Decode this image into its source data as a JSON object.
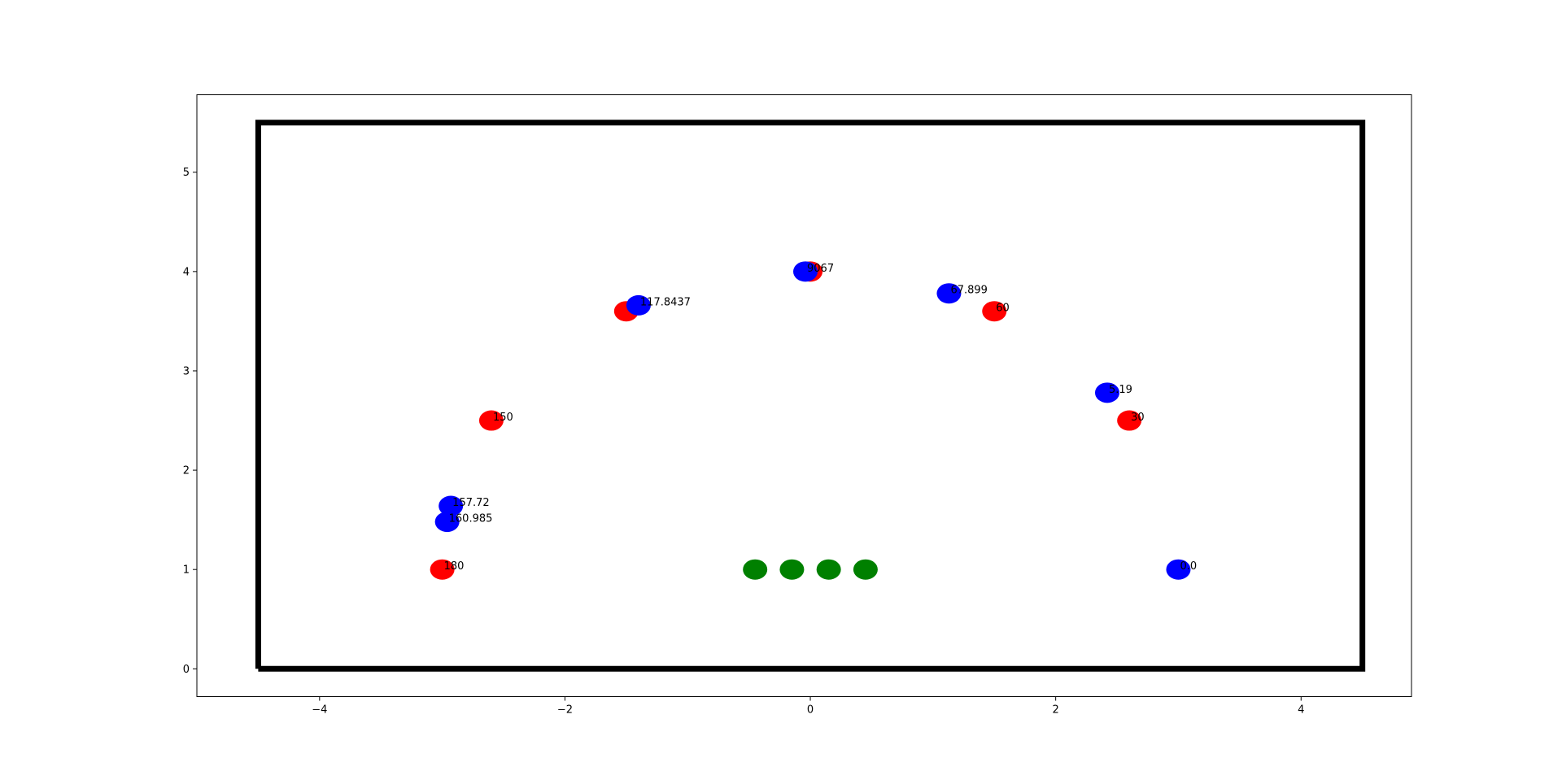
{
  "chart_data": {
    "type": "scatter",
    "title": "",
    "xlabel": "",
    "ylabel": "",
    "xlim": [
      -5.0,
      4.9
    ],
    "ylim": [
      -0.28,
      5.78
    ],
    "grid": false,
    "x_ticks": [
      -4,
      -2,
      0,
      2,
      4
    ],
    "y_ticks": [
      0,
      1,
      2,
      3,
      4,
      5
    ],
    "x_tick_labels": [
      "−4",
      "−2",
      "0",
      "2",
      "4"
    ],
    "y_tick_labels": [
      "0",
      "1",
      "2",
      "3",
      "4",
      "5"
    ],
    "boundary": {
      "color": "#000000",
      "x": [
        -4.5,
        4.5,
        4.5,
        -4.5,
        -4.5
      ],
      "y": [
        0,
        0,
        5.5,
        5.5,
        0
      ]
    },
    "series": [
      {
        "color": "#ff0000",
        "points": [
          {
            "x": -3.0,
            "y": 1.0,
            "label": "180"
          },
          {
            "x": -2.6,
            "y": 2.5,
            "label": "150"
          },
          {
            "x": -1.5,
            "y": 3.6,
            "label": ""
          },
          {
            "x": 0.0,
            "y": 4.0,
            "label": ""
          },
          {
            "x": 1.5,
            "y": 3.6,
            "label": "60"
          },
          {
            "x": 2.6,
            "y": 2.5,
            "label": "30"
          }
        ]
      },
      {
        "color": "#0000ff",
        "points": [
          {
            "x": -2.93,
            "y": 1.64,
            "label": "157.72"
          },
          {
            "x": -2.96,
            "y": 1.48,
            "label": "160.985"
          },
          {
            "x": -1.4,
            "y": 3.66,
            "label": "117.8437"
          },
          {
            "x": -0.04,
            "y": 4.0,
            "label": "9067"
          },
          {
            "x": 1.13,
            "y": 3.78,
            "label": "67.899"
          },
          {
            "x": 2.42,
            "y": 2.78,
            "label": "5.19"
          },
          {
            "x": 3.0,
            "y": 1.0,
            "label": "0.0"
          }
        ]
      },
      {
        "color": "#008000",
        "points": [
          {
            "x": -0.45,
            "y": 1.0,
            "label": ""
          },
          {
            "x": -0.15,
            "y": 1.0,
            "label": ""
          },
          {
            "x": 0.15,
            "y": 1.0,
            "label": ""
          },
          {
            "x": 0.45,
            "y": 1.0,
            "label": ""
          }
        ]
      }
    ]
  }
}
